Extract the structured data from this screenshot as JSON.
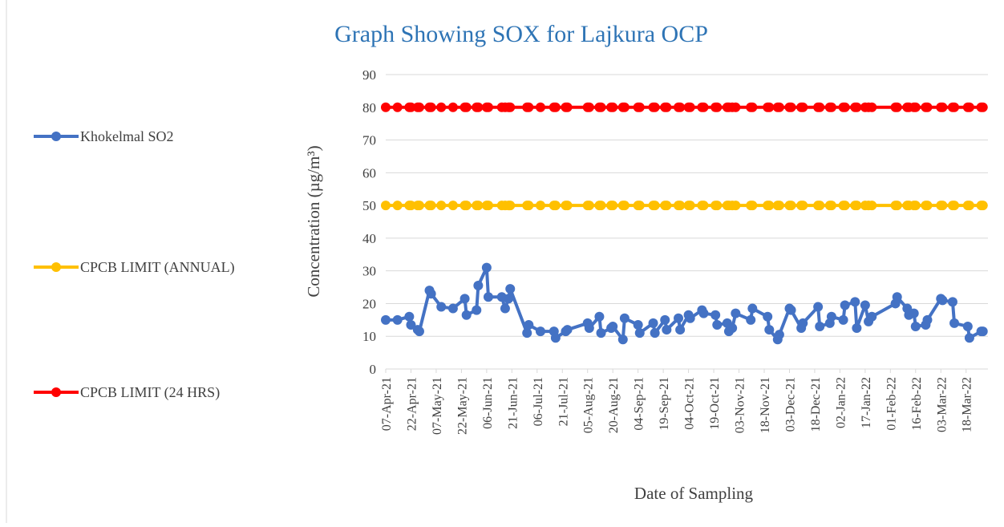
{
  "chart_data": {
    "type": "line",
    "title": "Graph Showing SOX  for Lajkura OCP",
    "y_label": "Concentration (µg/m³)",
    "x_label": "Date of Sampling",
    "x": [
      "2021-04-07",
      "2021-04-14",
      "2021-04-21",
      "2021-04-22",
      "2021-04-26",
      "2021-04-27",
      "2021-05-03",
      "2021-05-04",
      "2021-05-10",
      "2021-05-17",
      "2021-05-24",
      "2021-05-25",
      "2021-05-31",
      "2021-06-01",
      "2021-06-06",
      "2021-06-07",
      "2021-06-15",
      "2021-06-17",
      "2021-06-19",
      "2021-06-20",
      "2021-06-30",
      "2021-07-01",
      "2021-07-08",
      "2021-07-16",
      "2021-07-17",
      "2021-07-23",
      "2021-07-24",
      "2021-08-05",
      "2021-08-06",
      "2021-08-12",
      "2021-08-13",
      "2021-08-19",
      "2021-08-20",
      "2021-08-26",
      "2021-08-27",
      "2021-09-04",
      "2021-09-05",
      "2021-09-13",
      "2021-09-14",
      "2021-09-20",
      "2021-09-21",
      "2021-09-28",
      "2021-09-29",
      "2021-10-04",
      "2021-10-05",
      "2021-10-12",
      "2021-10-13",
      "2021-10-20",
      "2021-10-21",
      "2021-10-27",
      "2021-10-28",
      "2021-10-30",
      "2021-11-01",
      "2021-11-10",
      "2021-11-11",
      "2021-11-20",
      "2021-11-21",
      "2021-11-26",
      "2021-11-27",
      "2021-12-03",
      "2021-12-04",
      "2021-12-10",
      "2021-12-11",
      "2021-12-20",
      "2021-12-21",
      "2021-12-27",
      "2021-12-28",
      "2022-01-04",
      "2022-01-05",
      "2022-01-11",
      "2022-01-12",
      "2022-01-17",
      "2022-01-19",
      "2022-01-21",
      "2022-02-04",
      "2022-02-05",
      "2022-02-11",
      "2022-02-12",
      "2022-02-15",
      "2022-02-16",
      "2022-02-22",
      "2022-02-23",
      "2022-03-03",
      "2022-03-04",
      "2022-03-10",
      "2022-03-11",
      "2022-03-19",
      "2022-03-20",
      "2022-03-27",
      "2022-03-28"
    ],
    "series": [
      {
        "name": "Khokelmal SO2",
        "color": "#4472c4",
        "values": [
          15,
          15,
          16,
          13.5,
          12,
          11.5,
          24,
          23,
          19,
          18.5,
          21.5,
          16.5,
          18,
          25.5,
          31,
          22,
          22,
          18.5,
          21.5,
          24.5,
          11,
          13.5,
          11.5,
          11.5,
          9.5,
          11.5,
          12,
          14,
          12.5,
          16,
          11,
          12.5,
          13,
          9,
          15.5,
          13.5,
          11,
          14,
          11,
          15,
          12,
          15.5,
          12,
          16.5,
          15.5,
          18,
          17,
          16.5,
          13.5,
          14,
          11.5,
          12.5,
          17,
          15,
          18.5,
          16,
          12,
          9,
          10.5,
          18.5,
          18,
          12.5,
          14,
          19,
          13,
          14,
          16,
          15,
          19.5,
          20.5,
          12.5,
          19.5,
          14.5,
          16,
          20,
          22,
          18.5,
          16.5,
          17,
          13,
          13.5,
          15,
          21.5,
          21,
          20.5,
          14,
          13,
          9.5,
          11.5,
          11.5
        ]
      },
      {
        "name": "CPCB LIMIT (ANNUAL)",
        "color": "#ffc000",
        "values": [
          50,
          50,
          50,
          50,
          50,
          50,
          50,
          50,
          50,
          50,
          50,
          50,
          50,
          50,
          50,
          50,
          50,
          50,
          50,
          50,
          50,
          50,
          50,
          50,
          50,
          50,
          50,
          50,
          50,
          50,
          50,
          50,
          50,
          50,
          50,
          50,
          50,
          50,
          50,
          50,
          50,
          50,
          50,
          50,
          50,
          50,
          50,
          50,
          50,
          50,
          50,
          50,
          50,
          50,
          50,
          50,
          50,
          50,
          50,
          50,
          50,
          50,
          50,
          50,
          50,
          50,
          50,
          50,
          50,
          50,
          50,
          50,
          50,
          50,
          50,
          50,
          50,
          50,
          50,
          50,
          50,
          50,
          50,
          50,
          50,
          50,
          50,
          50,
          50,
          50
        ]
      },
      {
        "name": "CPCB LIMIT (24 HRS)",
        "color": "#ff0000",
        "values": [
          80,
          80,
          80,
          80,
          80,
          80,
          80,
          80,
          80,
          80,
          80,
          80,
          80,
          80,
          80,
          80,
          80,
          80,
          80,
          80,
          80,
          80,
          80,
          80,
          80,
          80,
          80,
          80,
          80,
          80,
          80,
          80,
          80,
          80,
          80,
          80,
          80,
          80,
          80,
          80,
          80,
          80,
          80,
          80,
          80,
          80,
          80,
          80,
          80,
          80,
          80,
          80,
          80,
          80,
          80,
          80,
          80,
          80,
          80,
          80,
          80,
          80,
          80,
          80,
          80,
          80,
          80,
          80,
          80,
          80,
          80,
          80,
          80,
          80,
          80,
          80,
          80,
          80,
          80,
          80,
          80,
          80,
          80,
          80,
          80,
          80,
          80,
          80,
          80,
          80
        ]
      }
    ],
    "xlim": [
      "2021-04-07",
      "2022-03-31"
    ],
    "xticks": [
      {
        "value": "2021-04-07",
        "label": "07-Apr-21"
      },
      {
        "value": "2021-04-22",
        "label": "22-Apr-21"
      },
      {
        "value": "2021-05-07",
        "label": "07-May-21"
      },
      {
        "value": "2021-05-22",
        "label": "22-May-21"
      },
      {
        "value": "2021-06-06",
        "label": "06-Jun-21"
      },
      {
        "value": "2021-06-21",
        "label": "21-Jun-21"
      },
      {
        "value": "2021-07-06",
        "label": "06-Jul-21"
      },
      {
        "value": "2021-07-21",
        "label": "21-Jul-21"
      },
      {
        "value": "2021-08-05",
        "label": "05-Aug-21"
      },
      {
        "value": "2021-08-20",
        "label": "20-Aug-21"
      },
      {
        "value": "2021-09-04",
        "label": "04-Sep-21"
      },
      {
        "value": "2021-09-19",
        "label": "19-Sep-21"
      },
      {
        "value": "2021-10-04",
        "label": "04-Oct-21"
      },
      {
        "value": "2021-10-19",
        "label": "19-Oct-21"
      },
      {
        "value": "2021-11-03",
        "label": "03-Nov-21"
      },
      {
        "value": "2021-11-18",
        "label": "18-Nov-21"
      },
      {
        "value": "2021-12-03",
        "label": "03-Dec-21"
      },
      {
        "value": "2021-12-18",
        "label": "18-Dec-21"
      },
      {
        "value": "2022-01-02",
        "label": "02-Jan-22"
      },
      {
        "value": "2022-01-17",
        "label": "17-Jan-22"
      },
      {
        "value": "2022-02-01",
        "label": "01-Feb-22"
      },
      {
        "value": "2022-02-16",
        "label": "16-Feb-22"
      },
      {
        "value": "2022-03-03",
        "label": "03-Mar-22"
      },
      {
        "value": "2022-03-18",
        "label": "18-Mar-22"
      }
    ],
    "ylim": [
      0,
      90
    ],
    "yticks": [
      0,
      10,
      20,
      30,
      40,
      50,
      60,
      70,
      80,
      90
    ],
    "grid": true,
    "legend": "left"
  }
}
